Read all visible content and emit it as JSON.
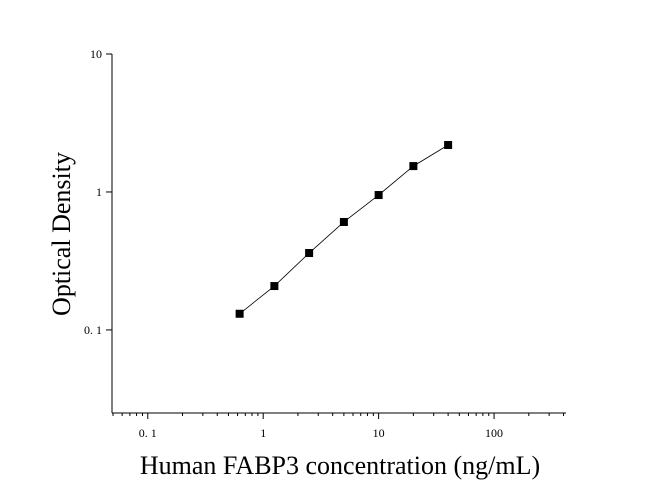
{
  "chart_data": {
    "type": "scatter",
    "x_label": "Human FABP3 concentration (ng/mL)",
    "y_label": "Optical Density",
    "x": [
      0.625,
      1.25,
      2.5,
      5,
      10,
      20,
      40
    ],
    "series": [
      {
        "color": "#000000",
        "values": [
          0.131,
          0.208,
          0.361,
          0.606,
          0.95,
          1.54,
          2.19
        ]
      }
    ],
    "x_log": true,
    "y_log": true,
    "connect_line": true,
    "xlim": [
      0.049,
      420
    ],
    "ylim": [
      0.025,
      10
    ],
    "xticks": [
      {
        "value": 0.1,
        "label": "0. 1"
      },
      1,
      10,
      100
    ],
    "xminorticks": [
      0.05,
      0.06,
      0.07,
      0.08,
      0.09,
      0.2,
      0.3,
      0.4,
      0.5,
      0.6,
      0.7,
      0.8,
      0.9,
      2,
      3,
      4,
      5,
      6,
      7,
      8,
      9,
      20,
      30,
      40,
      50,
      60,
      70,
      80,
      90,
      200,
      300,
      400
    ],
    "yticks": [
      {
        "value": 0.1,
        "label": "0. 1"
      },
      1,
      10
    ]
  }
}
